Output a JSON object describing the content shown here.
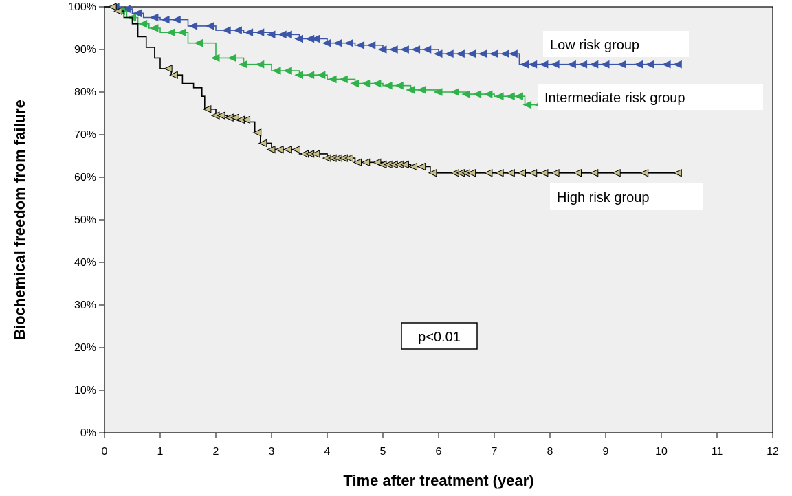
{
  "chart_data": {
    "type": "line",
    "subtype": "kaplan-meier",
    "title": "",
    "xlabel": "Time after treatment (year)",
    "ylabel": "Biochemical freedom from failure",
    "xlim": [
      0,
      12
    ],
    "ylim": [
      0,
      100
    ],
    "x_ticks": [
      0,
      1,
      2,
      3,
      4,
      5,
      6,
      7,
      8,
      9,
      10,
      11,
      12
    ],
    "y_ticks": [
      0,
      10,
      20,
      30,
      40,
      50,
      60,
      70,
      80,
      90,
      100
    ],
    "y_tick_labels": [
      "0%",
      "10%",
      "20%",
      "30%",
      "40%",
      "50%",
      "60%",
      "70%",
      "80%",
      "90%",
      "100%"
    ],
    "grid": false,
    "legend": "inline labels",
    "background": "#efefef",
    "annotation": "p<0.01",
    "series": [
      {
        "name": "Low risk group",
        "color": "#3b55a8",
        "censor_marker": "filled-triangle",
        "x": [
          0,
          0.3,
          0.5,
          0.7,
          1.0,
          1.5,
          2.0,
          2.5,
          3.0,
          3.5,
          4.0,
          4.5,
          5.0,
          5.5,
          6.0,
          6.5,
          7.0,
          7.4,
          7.45,
          8.0,
          9.0,
          10.0,
          10.35
        ],
        "y": [
          100,
          99.5,
          98.5,
          97.5,
          97,
          95.5,
          94.5,
          94,
          93.5,
          92.5,
          91.5,
          91,
          90,
          90,
          89,
          89,
          89,
          89,
          86.5,
          86.5,
          86.5,
          86.5,
          86.5
        ],
        "censor_x": [
          0.2,
          0.4,
          0.6,
          0.9,
          1.1,
          1.3,
          1.6,
          1.9,
          2.2,
          2.4,
          2.6,
          2.8,
          3.0,
          3.2,
          3.3,
          3.5,
          3.7,
          3.8,
          4.0,
          4.2,
          4.4,
          4.6,
          4.8,
          5.0,
          5.2,
          5.4,
          5.6,
          5.8,
          6.0,
          6.2,
          6.4,
          6.6,
          6.8,
          7.0,
          7.2,
          7.35,
          7.55,
          7.7,
          7.9,
          8.1,
          8.4,
          8.6,
          8.8,
          9.0,
          9.3,
          9.6,
          9.8,
          10.1,
          10.3
        ]
      },
      {
        "name": "Intermediate risk group",
        "color": "#2fb24a",
        "censor_marker": "filled-triangle",
        "x": [
          0,
          0.2,
          0.4,
          0.6,
          0.8,
          1.0,
          1.5,
          2.0,
          2.5,
          3.0,
          3.5,
          4.0,
          4.5,
          5.0,
          5.5,
          6.0,
          6.5,
          7.0,
          7.5,
          7.55,
          8.0,
          9.0,
          10.0,
          11.0
        ],
        "y": [
          100,
          99,
          97.5,
          96,
          95,
          94,
          91.5,
          88,
          86.5,
          85,
          84,
          83,
          82,
          81.5,
          80.5,
          80,
          79.5,
          79,
          79,
          77,
          77,
          77,
          77,
          77
        ],
        "censor_x": [
          0.3,
          0.5,
          0.7,
          0.9,
          1.2,
          1.4,
          1.7,
          2.0,
          2.3,
          2.5,
          2.8,
          3.1,
          3.3,
          3.5,
          3.7,
          3.9,
          4.1,
          4.3,
          4.5,
          4.7,
          4.9,
          5.1,
          5.3,
          5.5,
          5.7,
          6.0,
          6.3,
          6.5,
          6.7,
          6.9,
          7.1,
          7.3,
          7.45,
          7.6,
          7.8,
          8.0,
          8.2,
          8.4,
          8.6,
          8.8,
          9.1,
          9.3,
          9.5,
          9.8,
          10.1,
          10.4,
          10.6,
          11.0
        ]
      },
      {
        "name": "High risk group",
        "color": "#000000",
        "censor_marker": "open-triangle",
        "censor_fill": "#c8c28a",
        "x": [
          0,
          0.2,
          0.35,
          0.5,
          0.6,
          0.75,
          0.9,
          1.0,
          1.2,
          1.4,
          1.6,
          1.75,
          1.8,
          2.0,
          2.2,
          2.4,
          2.6,
          2.7,
          2.8,
          3.0,
          3.5,
          4.0,
          4.5,
          5.0,
          5.5,
          5.8,
          5.85,
          6.5,
          7.0,
          8.0,
          9.0,
          10.0,
          10.3
        ],
        "y": [
          100,
          99,
          97.5,
          96,
          93,
          90.5,
          88,
          85.5,
          84,
          82,
          81,
          79,
          76,
          74.5,
          74,
          73.5,
          73,
          70.5,
          68,
          66.5,
          65.5,
          64.5,
          63.5,
          63,
          62.5,
          62.5,
          61,
          61,
          61,
          61,
          61,
          61,
          61
        ],
        "censor_x": [
          0.15,
          0.25,
          1.15,
          1.25,
          1.85,
          2.0,
          2.1,
          2.25,
          2.35,
          2.45,
          2.55,
          2.75,
          2.85,
          3.0,
          3.15,
          3.3,
          3.45,
          3.6,
          3.7,
          3.8,
          4.0,
          4.1,
          4.2,
          4.3,
          4.4,
          4.55,
          4.7,
          4.9,
          5.0,
          5.1,
          5.2,
          5.3,
          5.4,
          5.55,
          5.7,
          5.9,
          6.3,
          6.4,
          6.5,
          6.6,
          6.9,
          7.1,
          7.3,
          7.5,
          7.7,
          7.9,
          8.1,
          8.5,
          8.8,
          9.2,
          9.7,
          10.3
        ]
      }
    ],
    "series_labels": [
      "Low risk group",
      "Intermediate risk group",
      "High risk group"
    ]
  }
}
